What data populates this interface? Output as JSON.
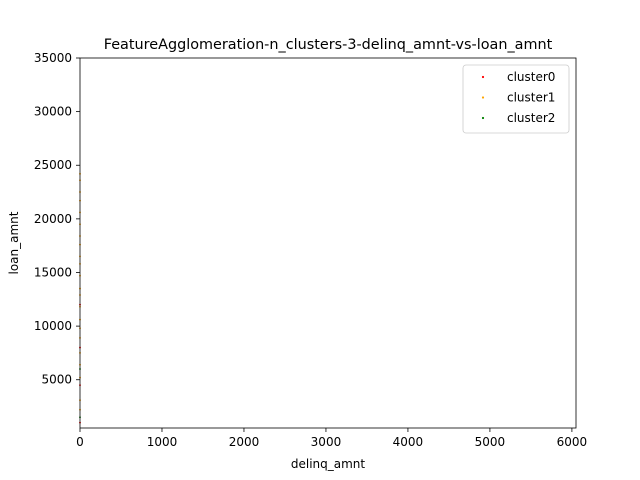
{
  "chart_data": {
    "type": "scatter",
    "title": "FeatureAgglomeration-n_clusters-3-delinq_amnt-vs-loan_amnt",
    "xlabel": "delinq_amnt",
    "ylabel": "loan_amnt",
    "xlim": [
      0,
      6050
    ],
    "ylim": [
      500,
      35000
    ],
    "xticks": [
      0,
      1000,
      2000,
      3000,
      4000,
      5000,
      6000
    ],
    "yticks": [
      5000,
      10000,
      15000,
      20000,
      25000,
      30000,
      35000
    ],
    "grid": false,
    "legend_position": "top-right",
    "series": [
      {
        "name": "cluster0",
        "color": "#ff0000",
        "points": [
          [
            0,
            1000
          ],
          [
            0,
            4500
          ],
          [
            0,
            8000
          ],
          [
            0,
            12000
          ]
        ]
      },
      {
        "name": "cluster1",
        "color": "#ffa500",
        "points": [
          [
            0,
            2200
          ],
          [
            0,
            3100
          ],
          [
            0,
            5200
          ],
          [
            0,
            6400
          ],
          [
            0,
            7500
          ],
          [
            0,
            8900
          ],
          [
            0,
            9800
          ],
          [
            0,
            10600
          ],
          [
            0,
            11800
          ],
          [
            0,
            12900
          ],
          [
            0,
            13500
          ],
          [
            0,
            14700
          ],
          [
            0,
            15800
          ],
          [
            0,
            16500
          ],
          [
            0,
            17600
          ],
          [
            0,
            18400
          ],
          [
            0,
            19500
          ],
          [
            0,
            20600
          ],
          [
            0,
            21700
          ],
          [
            0,
            22500
          ],
          [
            0,
            23600
          ],
          [
            0,
            24200
          ]
        ]
      },
      {
        "name": "cluster2",
        "color": "#008000",
        "points": [
          [
            0,
            1500
          ],
          [
            0,
            6000
          ]
        ]
      }
    ]
  }
}
